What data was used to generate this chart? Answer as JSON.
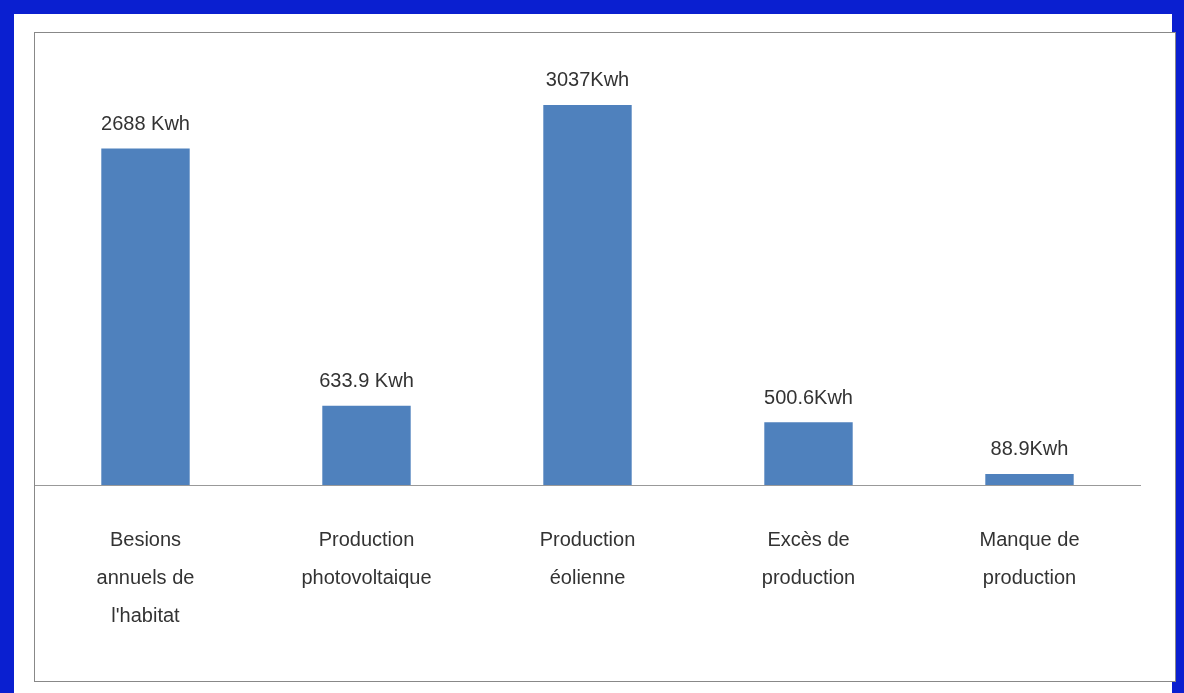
{
  "chart_data": {
    "type": "bar",
    "categories": [
      "Besions annuels de l'habitat",
      "Production photovoltaique",
      "Production éolienne",
      "Excès de production",
      "Manque de production"
    ],
    "values": [
      2688,
      633.9,
      3037,
      500.6,
      88.9
    ],
    "value_labels": [
      "2688 Kwh",
      "633.9 Kwh",
      "3037Kwh",
      "500.6Kwh",
      "88.9Kwh"
    ],
    "color": "#4f81bd",
    "grid": false,
    "legend": false
  }
}
